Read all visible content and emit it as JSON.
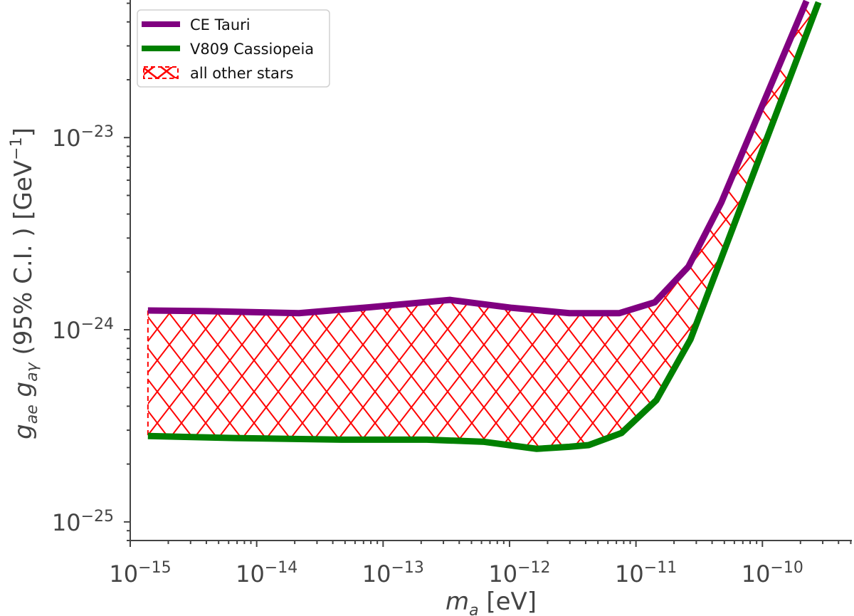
{
  "chart_data": {
    "type": "line",
    "xlabel": "m_a [eV]",
    "ylabel": "g_ae g_aγ (95% C.I. ) [GeV^−1]",
    "xscale": "log",
    "yscale": "log",
    "xlim": [
      1e-15,
      5.1e-10
    ],
    "ylim": [
      8e-26,
      5.2e-23
    ],
    "grid": false,
    "legend_position": "top-left",
    "x_ticks": [
      {
        "value": 1e-15,
        "label": "10^−15"
      },
      {
        "value": 1e-14,
        "label": "10^−14"
      },
      {
        "value": 1e-13,
        "label": "10^−13"
      },
      {
        "value": 1e-12,
        "label": "10^−12"
      },
      {
        "value": 1e-11,
        "label": "10^−11"
      },
      {
        "value": 1e-10,
        "label": "10^−10"
      }
    ],
    "y_ticks": [
      {
        "value": 1e-25,
        "label": "10^−25"
      },
      {
        "value": 1e-24,
        "label": "10^−24"
      },
      {
        "value": 1e-23,
        "label": "10^−23"
      }
    ],
    "series": [
      {
        "name": "CE Tauri",
        "color": "#800080",
        "x": [
          1.38e-15,
          4e-15,
          2.16e-14,
          7.9e-14,
          3.37e-13,
          1.05e-12,
          2.98e-12,
          7.4e-12,
          1.41e-11,
          2.6e-11,
          4.72e-11,
          2.23e-10
        ],
        "y": [
          1.26e-24,
          1.25e-24,
          1.22e-24,
          1.31e-24,
          1.43e-24,
          1.3e-24,
          1.22e-24,
          1.22e-24,
          1.39e-24,
          2.13e-24,
          4.58e-24,
          5.14e-23
        ]
      },
      {
        "name": "V809 Cassiopeia",
        "color": "#008000",
        "x": [
          1.38e-15,
          6.7e-15,
          4.7e-14,
          2.22e-13,
          6.3e-13,
          1.64e-12,
          2.98e-12,
          4.23e-12,
          7.68e-12,
          1.45e-11,
          2.7e-11,
          2.78e-10
        ],
        "y": [
          2.8e-25,
          2.73e-25,
          2.68e-25,
          2.68e-25,
          2.61e-25,
          2.4e-25,
          2.46e-25,
          2.51e-25,
          2.9e-25,
          4.3e-25,
          8.91e-25,
          5.06e-23
        ]
      }
    ],
    "fill_between": {
      "name": "all other stars",
      "color": "#ff0000",
      "hatch": "x",
      "between": [
        "CE Tauri",
        "V809 Cassiopeia"
      ]
    }
  }
}
